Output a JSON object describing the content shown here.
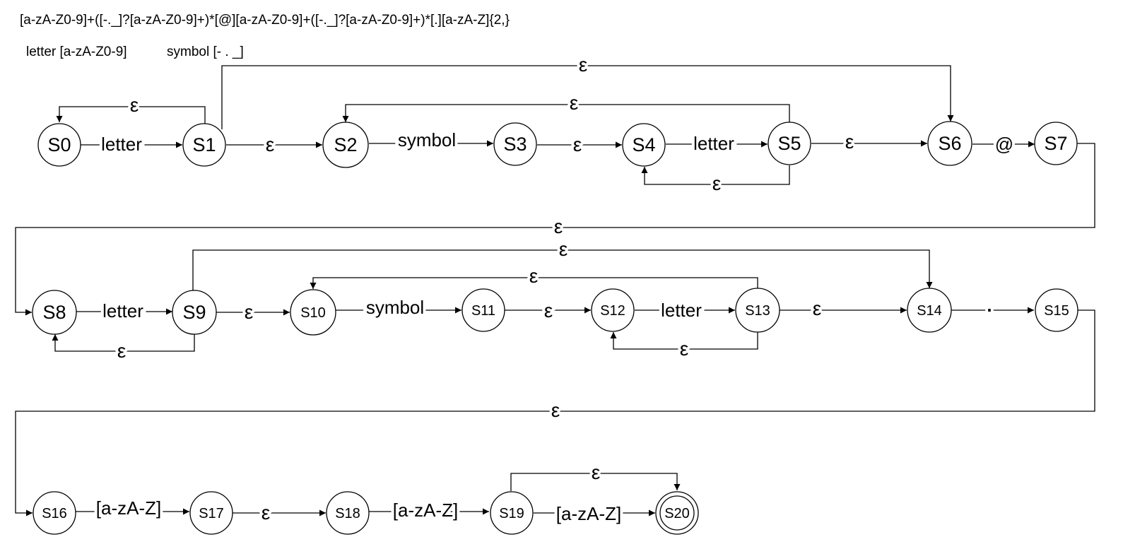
{
  "regex": "[a-zA-Z0-9]+([-._]?[a-zA-Z0-9]+)*[@][a-zA-Z0-9]+([-._]?[a-zA-Z0-9]+)*[.][a-zA-Z]{2,}",
  "legend": {
    "letter": "letter [a-zA-Z0-9]",
    "symbol": "symbol [- . _]"
  },
  "states": [
    "S0",
    "S1",
    "S2",
    "S3",
    "S4",
    "S5",
    "S6",
    "S7",
    "S8",
    "S9",
    "S10",
    "S11",
    "S12",
    "S13",
    "S14",
    "S15",
    "S16",
    "S17",
    "S18",
    "S19",
    "S20"
  ],
  "accepting_state": "S20",
  "transitions": [
    {
      "from": "S0",
      "to": "S1",
      "label": "letter"
    },
    {
      "from": "S1",
      "to": "S0",
      "label": "ε"
    },
    {
      "from": "S1",
      "to": "S2",
      "label": "ε"
    },
    {
      "from": "S1",
      "to": "S6",
      "label": "ε"
    },
    {
      "from": "S2",
      "to": "S3",
      "label": "symbol"
    },
    {
      "from": "S3",
      "to": "S4",
      "label": "ε"
    },
    {
      "from": "S4",
      "to": "S5",
      "label": "letter"
    },
    {
      "from": "S5",
      "to": "S4",
      "label": "ε"
    },
    {
      "from": "S5",
      "to": "S2",
      "label": "ε"
    },
    {
      "from": "S5",
      "to": "S6",
      "label": "ε"
    },
    {
      "from": "S6",
      "to": "S7",
      "label": "@"
    },
    {
      "from": "S7",
      "to": "S8",
      "label": "ε"
    },
    {
      "from": "S8",
      "to": "S9",
      "label": "letter"
    },
    {
      "from": "S9",
      "to": "S8",
      "label": "ε"
    },
    {
      "from": "S9",
      "to": "S10",
      "label": "ε"
    },
    {
      "from": "S9",
      "to": "S14",
      "label": "ε"
    },
    {
      "from": "S10",
      "to": "S11",
      "label": "symbol"
    },
    {
      "from": "S11",
      "to": "S12",
      "label": "ε"
    },
    {
      "from": "S12",
      "to": "S13",
      "label": "letter"
    },
    {
      "from": "S13",
      "to": "S12",
      "label": "ε"
    },
    {
      "from": "S13",
      "to": "S10",
      "label": "ε"
    },
    {
      "from": "S13",
      "to": "S14",
      "label": "ε"
    },
    {
      "from": "S14",
      "to": "S15",
      "label": "."
    },
    {
      "from": "S15",
      "to": "S16",
      "label": "ε"
    },
    {
      "from": "S16",
      "to": "S17",
      "label": "[a-zA-Z]"
    },
    {
      "from": "S17",
      "to": "S18",
      "label": "ε"
    },
    {
      "from": "S18",
      "to": "S19",
      "label": "[a-zA-Z]"
    },
    {
      "from": "S19",
      "to": "S20",
      "label": "[a-zA-Z]"
    },
    {
      "from": "S19",
      "to": "S20",
      "label": "ε"
    }
  ]
}
